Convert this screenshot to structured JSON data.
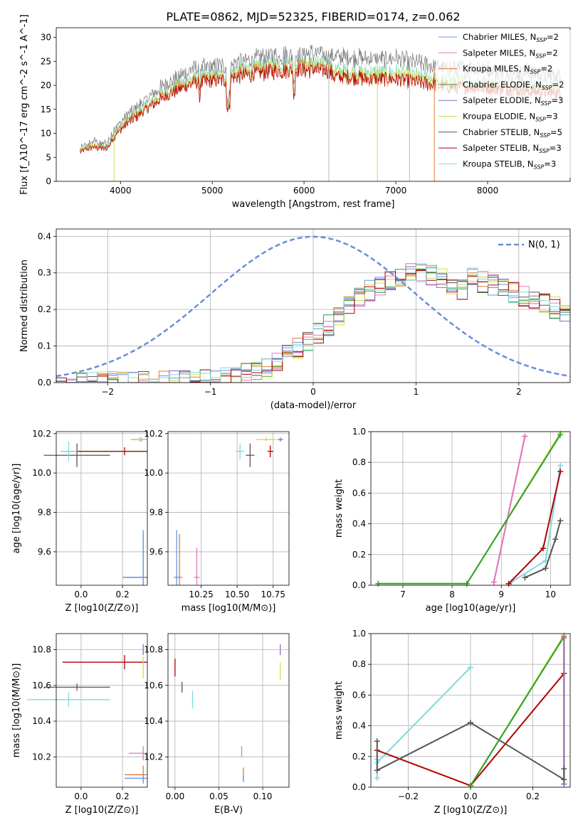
{
  "title": "PLATE=0862, MJD=52325, FIBERID=0174, z=0.062",
  "colors": {
    "Chabrier MILES": "#6495ed",
    "Salpeter MILES": "#e377c2",
    "Kroupa MILES": "#e07b39",
    "Chabrier ELODIE": "#2ca02c",
    "Salpeter ELODIE": "#9467bd",
    "Kroupa ELODIE": "#c9e04a",
    "Chabrier STELIB": "#555555",
    "Salpeter STELIB": "#b00000",
    "Kroupa STELIB": "#7fd8e0",
    "Data": "#777777"
  },
  "chart_data": [
    {
      "type": "line",
      "title": "PLATE=0862, MJD=52325, FIBERID=0174, z=0.062",
      "xlabel": "wavelength [Angstrom, rest frame]",
      "ylabel": "Flux [f_λ10^-17 erg cm^-2 s^-1 A^-1]",
      "xlim": [
        3300,
        8900
      ],
      "ylim": [
        0,
        32
      ],
      "xticks": [
        4000,
        5000,
        6000,
        7000,
        8000
      ],
      "yticks": [
        0,
        5,
        10,
        15,
        20,
        25,
        30
      ],
      "legend": "top-right",
      "legend_entries": [
        {
          "name": "Chabrier MILES",
          "n": "2"
        },
        {
          "name": "Salpeter MILES",
          "n": "2"
        },
        {
          "name": "Kroupa MILES",
          "n": "2"
        },
        {
          "name": "Chabrier ELODIE",
          "n": "2"
        },
        {
          "name": "Salpeter ELODIE",
          "n": "3"
        },
        {
          "name": "Kroupa ELODIE",
          "n": "3"
        },
        {
          "name": "Chabrier STELIB",
          "n": "5"
        },
        {
          "name": "Salpeter STELIB",
          "n": "3"
        },
        {
          "name": "Kroupa STELIB",
          "n": "3"
        }
      ],
      "continuum": {
        "x": [
          3560,
          3700,
          3850,
          3950,
          4100,
          4300,
          4500,
          4800,
          5100,
          5300,
          5600,
          5900,
          6100,
          6400,
          6700,
          7000,
          7300,
          7600,
          7900,
          8200,
          8500,
          8800
        ],
        "y": [
          7,
          8,
          7.5,
          11,
          14,
          17,
          20,
          23,
          23.5,
          24.5,
          25.5,
          26,
          26,
          25.5,
          25,
          25,
          24,
          23,
          23,
          22.5,
          22,
          21.5
        ]
      }
    },
    {
      "type": "line",
      "xlabel": "(data-model)/error",
      "ylabel": "Normed distribution",
      "xlim": [
        -2.5,
        2.5
      ],
      "ylim": [
        0,
        0.42
      ],
      "xticks": [
        -2,
        -1,
        0,
        1,
        2
      ],
      "yticks": [
        0.0,
        0.1,
        0.2,
        0.3,
        0.4
      ],
      "legend_label": "N(0, 1)",
      "legend": "top-right",
      "normal_curve": {
        "mean": 0,
        "sigma": 1
      }
    },
    {
      "type": "scatter",
      "xlabel": "Z [log10(Z/Z⊙)]",
      "ylabel": "age  [log10(age/yr)]",
      "xlim": [
        -0.12,
        0.32
      ],
      "ylim": [
        9.43,
        10.21
      ],
      "xticks": [
        0.0,
        0.2
      ],
      "yticks": [
        9.6,
        9.8,
        10.0,
        10.2
      ],
      "points": [
        {
          "model": "Salpeter STELIB",
          "x": 0.21,
          "y": 10.11,
          "xerr": 0.3,
          "yerr": 0.02
        },
        {
          "model": "Chabrier STELIB",
          "x": -0.02,
          "y": 10.09,
          "xerr": 0.16,
          "yerr": 0.06
        },
        {
          "model": "Kroupa STELIB",
          "x": -0.06,
          "y": 10.11,
          "xerr": 0.04,
          "yerr": 0.05
        },
        {
          "model": "Salpeter ELODIE",
          "x": 0.29,
          "y": 10.17,
          "xerr": 0.05,
          "yerr": 0.01
        },
        {
          "model": "Kroupa ELODIE",
          "x": 0.28,
          "y": 10.17,
          "xerr": 0.04,
          "yerr": 0.01
        },
        {
          "model": "Kroupa MILES",
          "x": 0.3,
          "y": 9.47,
          "xerr": 0.1,
          "yerr": 0.22
        },
        {
          "model": "Chabrier MILES",
          "x": 0.3,
          "y": 9.47,
          "xerr": 0.1,
          "yerr": 0.24
        }
      ]
    },
    {
      "type": "scatter",
      "xlabel": "mass [log10(M/M⊙)]",
      "ylabel": "",
      "xlim": [
        10.02,
        10.86
      ],
      "ylim": [
        9.43,
        10.21
      ],
      "xticks": [
        10.25,
        10.5,
        10.75
      ],
      "yticks": [
        9.6,
        9.8,
        10.0,
        10.2
      ],
      "points": [
        {
          "model": "Salpeter STELIB",
          "x": 10.73,
          "y": 10.11,
          "xerr": 0.02,
          "yerr": 0.03
        },
        {
          "model": "Chabrier STELIB",
          "x": 10.59,
          "y": 10.09,
          "xerr": 0.03,
          "yerr": 0.06
        },
        {
          "model": "Kroupa STELIB",
          "x": 10.52,
          "y": 10.11,
          "xerr": 0.03,
          "yerr": 0.04
        },
        {
          "model": "Salpeter ELODIE",
          "x": 10.8,
          "y": 10.17,
          "xerr": 0.02,
          "yerr": 0.01
        },
        {
          "model": "Kroupa ELODIE",
          "x": 10.7,
          "y": 10.17,
          "xerr": 0.07,
          "yerr": 0.01
        },
        {
          "model": "Salpeter MILES",
          "x": 10.22,
          "y": 9.47,
          "xerr": 0.02,
          "yerr": 0.15
        },
        {
          "model": "Kroupa MILES",
          "x": 10.1,
          "y": 9.47,
          "xerr": 0.02,
          "yerr": 0.22
        },
        {
          "model": "Chabrier MILES",
          "x": 10.08,
          "y": 9.47,
          "xerr": 0.02,
          "yerr": 0.24
        }
      ]
    },
    {
      "type": "line",
      "xlabel": "age  [log10(age/yr)]",
      "ylabel": "mass weight",
      "xlim": [
        6.35,
        10.4
      ],
      "ylim": [
        0,
        1
      ],
      "xticks": [
        7,
        8,
        9,
        10
      ],
      "yticks": [
        0.0,
        0.2,
        0.4,
        0.6,
        0.8,
        1.0
      ],
      "series": [
        {
          "model": "Kroupa MILES",
          "x": [
            8.85,
            9.48
          ],
          "y": [
            0.02,
            0.97
          ]
        },
        {
          "model": "Salpeter MILES",
          "x": [
            8.85,
            9.48
          ],
          "y": [
            0.02,
            0.97
          ]
        },
        {
          "model": "Kroupa ELODIE",
          "x": [
            6.5,
            8.3,
            10.2
          ],
          "y": [
            0.01,
            0.01,
            0.99
          ]
        },
        {
          "model": "Chabrier ELODIE",
          "x": [
            6.5,
            8.3,
            10.2
          ],
          "y": [
            0.01,
            0.01,
            0.98
          ]
        },
        {
          "model": "Kroupa STELIB",
          "x": [
            9.2,
            9.9,
            10.2
          ],
          "y": [
            0.02,
            0.16,
            0.78
          ]
        },
        {
          "model": "Salpeter STELIB",
          "x": [
            9.15,
            9.85,
            10.2
          ],
          "y": [
            0.01,
            0.24,
            0.74
          ]
        },
        {
          "model": "Chabrier STELIB",
          "x": [
            9.48,
            9.9,
            10.1,
            10.2
          ],
          "y": [
            0.05,
            0.11,
            0.3,
            0.42
          ]
        }
      ]
    },
    {
      "type": "scatter",
      "xlabel": "Z [log10(Z/Z⊙)]",
      "ylabel": "mass [log10(M/M⊙)]",
      "xlim": [
        -0.12,
        0.32
      ],
      "ylim": [
        10.03,
        10.89
      ],
      "xticks": [
        0.0,
        0.2
      ],
      "yticks": [
        10.2,
        10.4,
        10.6,
        10.8
      ],
      "points": [
        {
          "model": "Salpeter STELIB",
          "x": 0.21,
          "y": 10.73,
          "xerr": 0.3,
          "yerr": 0.04
        },
        {
          "model": "Chabrier STELIB",
          "x": -0.02,
          "y": 10.59,
          "xerr": 0.16,
          "yerr": 0.02
        },
        {
          "model": "Kroupa STELIB",
          "x": -0.06,
          "y": 10.52,
          "xerr": 0.2,
          "yerr": 0.04
        },
        {
          "model": "Salpeter ELODIE",
          "x": 0.3,
          "y": 10.8,
          "xerr": 0.0,
          "yerr": 0.03
        },
        {
          "model": "Kroupa ELODIE",
          "x": 0.3,
          "y": 10.7,
          "xerr": 0.0,
          "yerr": 0.06
        },
        {
          "model": "Salpeter MILES",
          "x": 0.3,
          "y": 10.22,
          "xerr": 0.07,
          "yerr": 0.04
        },
        {
          "model": "Kroupa MILES",
          "x": 0.3,
          "y": 10.1,
          "xerr": 0.09,
          "yerr": 0.05
        },
        {
          "model": "Chabrier MILES",
          "x": 0.3,
          "y": 10.08,
          "xerr": 0.09,
          "yerr": 0.02
        }
      ]
    },
    {
      "type": "scatter",
      "xlabel": "E(B-V)",
      "ylabel": "",
      "xlim": [
        -0.008,
        0.13
      ],
      "ylim": [
        10.03,
        10.89
      ],
      "xticks": [
        0.0,
        0.05,
        0.1
      ],
      "yticks": [
        10.2,
        10.4,
        10.6,
        10.8
      ],
      "points": [
        {
          "model": "Salpeter STELIB",
          "x": 0.0,
          "y": 10.7,
          "yerr": 0.05
        },
        {
          "model": "Chabrier STELIB",
          "x": 0.008,
          "y": 10.59,
          "yerr": 0.03
        },
        {
          "model": "Kroupa STELIB",
          "x": 0.02,
          "y": 10.52,
          "yerr": 0.05
        },
        {
          "model": "Salpeter ELODIE",
          "x": 0.12,
          "y": 10.8,
          "yerr": 0.03
        },
        {
          "model": "Kroupa ELODIE",
          "x": 0.12,
          "y": 10.68,
          "yerr": 0.05
        },
        {
          "model": "Salpeter MILES",
          "x": 0.076,
          "y": 10.23,
          "yerr": 0.03
        },
        {
          "model": "Kroupa MILES",
          "x": 0.078,
          "y": 10.1,
          "yerr": 0.04
        },
        {
          "model": "Chabrier MILES",
          "x": 0.078,
          "y": 10.08,
          "yerr": 0.02
        }
      ]
    },
    {
      "type": "line",
      "xlabel": "Z [log10(Z/Z⊙)]",
      "ylabel": "mass weight",
      "xlim": [
        -0.32,
        0.32
      ],
      "ylim": [
        0,
        1
      ],
      "xticks": [
        -0.2,
        0.0,
        0.2
      ],
      "yticks": [
        0.0,
        0.2,
        0.4,
        0.6,
        0.8,
        1.0
      ],
      "series": [
        {
          "model": "Kroupa STELIB",
          "x": [
            -0.3,
            0.0
          ],
          "y": [
            0.16,
            0.78
          ]
        },
        {
          "model": "Kroupa STELIB",
          "x": [
            -0.3,
            -0.3
          ],
          "y": [
            0.06,
            0.18
          ]
        },
        {
          "model": "Salpeter STELIB",
          "x": [
            -0.3,
            0.0,
            0.3
          ],
          "y": [
            0.24,
            0.01,
            0.74
          ]
        },
        {
          "model": "Chabrier STELIB",
          "x": [
            -0.3,
            0.0,
            0.3
          ],
          "y": [
            0.11,
            0.42,
            0.05
          ]
        },
        {
          "model": "Chabrier STELIB",
          "x": [
            -0.3,
            -0.3
          ],
          "y": [
            0.11,
            0.3
          ]
        },
        {
          "model": "Kroupa ELODIE",
          "x": [
            0.0,
            0.3
          ],
          "y": [
            0.01,
            0.99
          ]
        },
        {
          "model": "Chabrier ELODIE",
          "x": [
            0.0,
            0.3
          ],
          "y": [
            0.01,
            0.98
          ]
        },
        {
          "model": "Kroupa MILES",
          "x": [
            0.3,
            0.3
          ],
          "y": [
            0.02,
            0.97
          ]
        },
        {
          "model": "Salpeter ELODIE",
          "x": [
            0.3,
            0.3
          ],
          "y": [
            0.02,
            0.98
          ]
        },
        {
          "model": "Chabrier STELIB",
          "x": [
            0.3,
            0.3
          ],
          "y": [
            0.05,
            0.12
          ]
        }
      ]
    }
  ]
}
